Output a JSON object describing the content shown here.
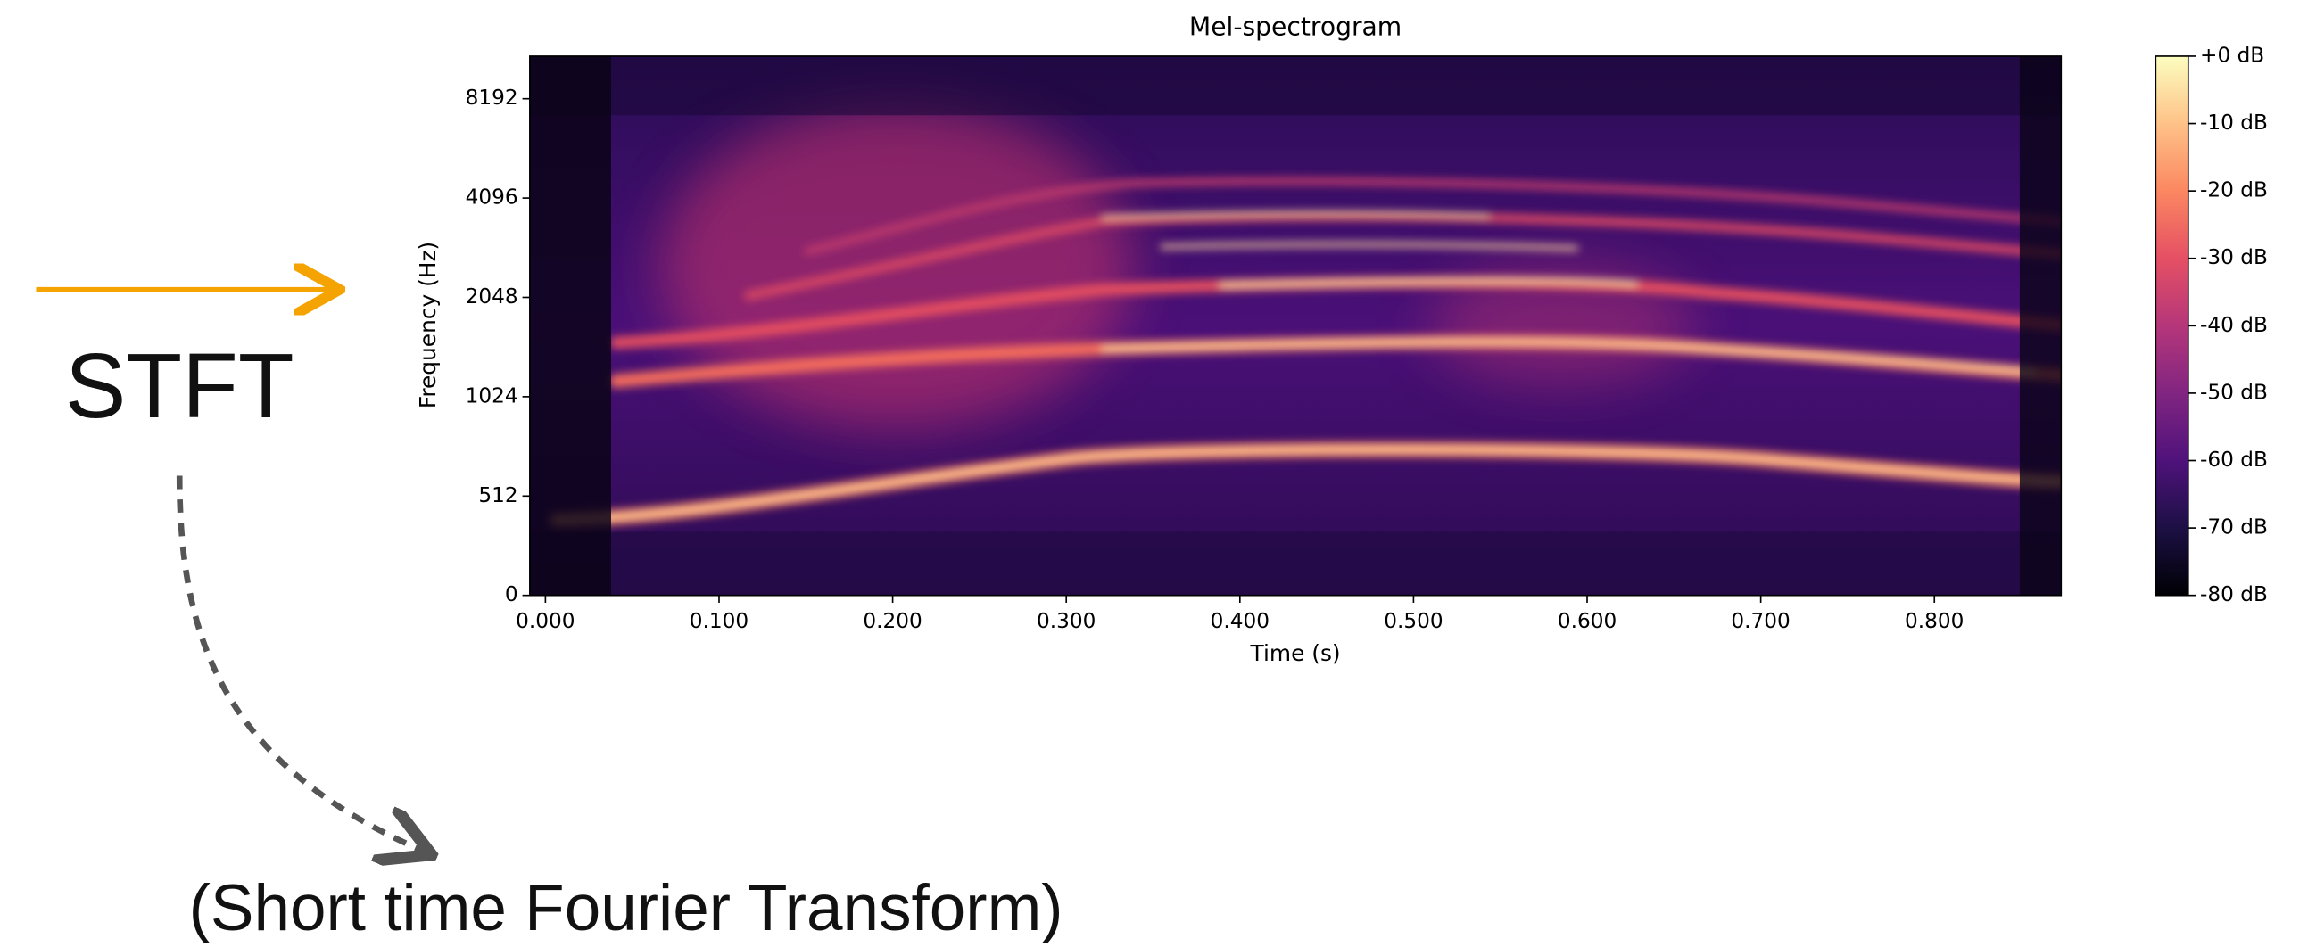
{
  "slide": {
    "heading": "STFT",
    "caption": "(Short time Fourier Transform)"
  },
  "chart_data": {
    "type": "spectrogram",
    "title": "Mel-spectrogram",
    "xlabel": "Time (s)",
    "ylabel": "Frequency (Hz)",
    "xlim": [
      -0.009,
      0.873
    ],
    "xticks": [
      {
        "value": 0,
        "label": "0.000"
      },
      {
        "value": 0.1,
        "label": "0.100"
      },
      {
        "value": 0.2,
        "label": "0.200"
      },
      {
        "value": 0.3,
        "label": "0.300"
      },
      {
        "value": 0.4,
        "label": "0.400"
      },
      {
        "value": 0.5,
        "label": "0.500"
      },
      {
        "value": 0.6,
        "label": "0.600"
      },
      {
        "value": 0.7,
        "label": "0.700"
      },
      {
        "value": 0.8,
        "label": "0.800"
      }
    ],
    "ylim": [
      0,
      11025
    ],
    "yscale": "symlog",
    "linthresh": 512,
    "yticks": [
      0,
      512,
      1024,
      2048,
      4096,
      8192
    ],
    "colormap": "magma",
    "colorbar": {
      "clim": [
        -80,
        0
      ],
      "ticks": [
        {
          "value": 0,
          "label": "+0 dB"
        },
        {
          "value": -10,
          "label": "-10 dB"
        },
        {
          "value": -20,
          "label": "-20 dB"
        },
        {
          "value": -30,
          "label": "-30 dB"
        },
        {
          "value": -40,
          "label": "-40 dB"
        },
        {
          "value": -50,
          "label": "-50 dB"
        },
        {
          "value": -60,
          "label": "-60 dB"
        },
        {
          "value": -70,
          "label": "-70 dB"
        },
        {
          "value": -80,
          "label": "-80 dB"
        }
      ]
    }
  }
}
